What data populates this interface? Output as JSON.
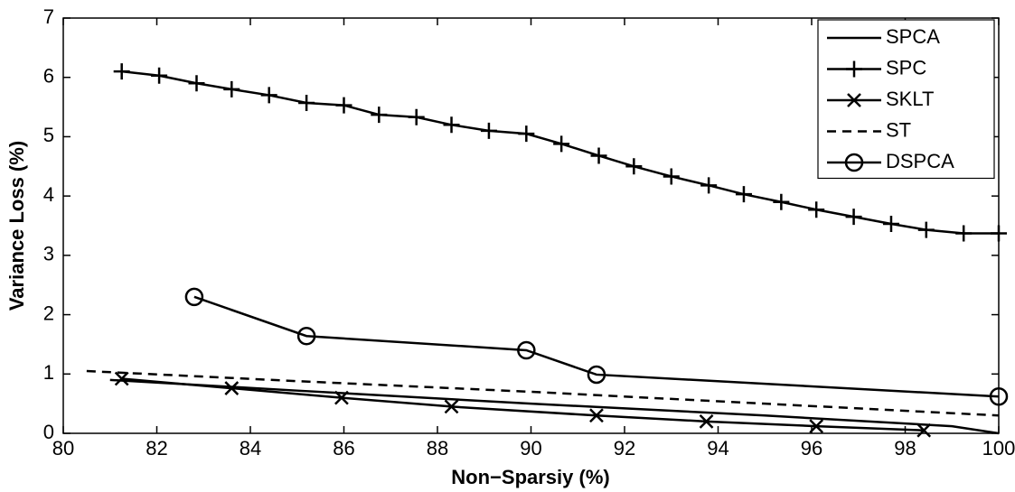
{
  "chart_data": {
    "type": "line",
    "xlabel": "Non−Sparsiy (%)",
    "ylabel": "Variance Loss (%)",
    "xlim": [
      80,
      100
    ],
    "xticks": [
      80,
      82,
      84,
      86,
      88,
      90,
      92,
      94,
      96,
      98,
      100
    ],
    "ylim": [
      0,
      7
    ],
    "yticks": [
      0,
      1,
      2,
      3,
      4,
      5,
      6,
      7
    ],
    "legend": "upper right",
    "series": [
      {
        "name": "SPCA",
        "color": "#000000",
        "marker": "none",
        "dash": false,
        "x": [
          81,
          85,
          90,
          95,
          99,
          100
        ],
        "values": [
          0.9,
          0.72,
          0.5,
          0.3,
          0.12,
          0
        ]
      },
      {
        "name": "SPC",
        "color": "#000000",
        "marker": "+",
        "dash": false,
        "x": [
          81.25,
          82.05,
          82.85,
          83.6,
          84.4,
          85.2,
          86.0,
          86.75,
          87.55,
          88.3,
          89.1,
          89.9,
          90.65,
          91.45,
          92.2,
          93.0,
          93.8,
          94.55,
          95.35,
          96.1,
          96.9,
          97.7,
          98.45,
          99.25,
          100
        ],
        "values": [
          6.1,
          6.03,
          5.9,
          5.8,
          5.7,
          5.57,
          5.53,
          5.37,
          5.33,
          5.2,
          5.1,
          5.05,
          4.88,
          4.68,
          4.5,
          4.33,
          4.18,
          4.03,
          3.9,
          3.77,
          3.65,
          3.53,
          3.43,
          3.37,
          3.37
        ]
      },
      {
        "name": "SKLT",
        "color": "#000000",
        "marker": "x",
        "dash": false,
        "x": [
          81.25,
          83.6,
          85.95,
          88.3,
          91.4,
          93.75,
          96.1,
          98.4
        ],
        "values": [
          0.92,
          0.76,
          0.6,
          0.45,
          0.3,
          0.2,
          0.12,
          0.05
        ]
      },
      {
        "name": "ST",
        "color": "#000000",
        "marker": "none",
        "dash": true,
        "x": [
          80.5,
          85,
          90,
          95,
          100
        ],
        "values": [
          1.05,
          0.88,
          0.7,
          0.5,
          0.3
        ]
      },
      {
        "name": "DSPCA",
        "color": "#000000",
        "marker": "o",
        "dash": false,
        "x": [
          82.8,
          85.2,
          89.9,
          91.4,
          100
        ],
        "values": [
          2.3,
          1.64,
          1.4,
          0.99,
          0.62
        ]
      }
    ]
  }
}
